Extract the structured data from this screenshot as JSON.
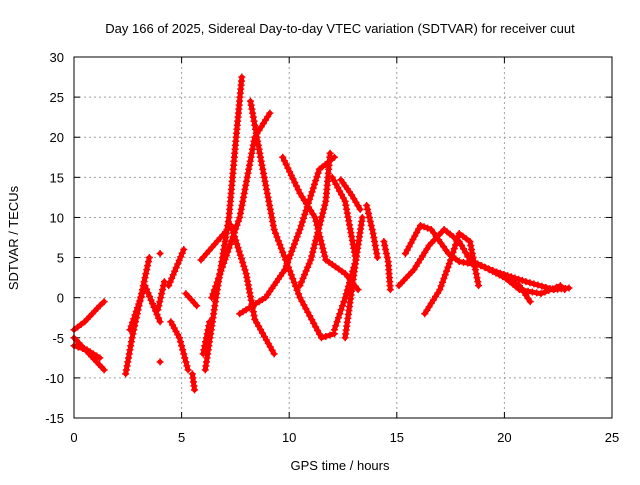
{
  "chart_data": {
    "type": "scatter",
    "title": "Day 166 of 2025, Sidereal Day-to-day VTEC variation (SDTVAR) for receiver cuut",
    "xlabel": "GPS time / hours",
    "ylabel": "SDTVAR / TECUs",
    "xlim": [
      0,
      25
    ],
    "ylim": [
      -15,
      30
    ],
    "xticks": [
      0,
      5,
      10,
      15,
      20,
      25
    ],
    "yticks": [
      -15,
      -10,
      -5,
      0,
      5,
      10,
      15,
      20,
      25,
      30
    ],
    "grid": true,
    "marker": "plus",
    "color": "#ff0000",
    "tracks": [
      [
        [
          6.1,
          -9
        ],
        [
          6.6,
          0
        ],
        [
          7.2,
          10
        ],
        [
          7.5,
          19
        ],
        [
          7.8,
          27.5
        ]
      ],
      [
        [
          6.4,
          0
        ],
        [
          7.7,
          10
        ],
        [
          8.4,
          20
        ],
        [
          9.1,
          23
        ]
      ],
      [
        [
          8.2,
          24.5
        ],
        [
          8.7,
          17
        ],
        [
          9.3,
          8.5
        ],
        [
          10.5,
          0
        ],
        [
          11.5,
          -5
        ],
        [
          12.1,
          -4.5
        ]
      ],
      [
        [
          5.9,
          4.7
        ],
        [
          7.3,
          9
        ],
        [
          8.0,
          3
        ],
        [
          8.4,
          -2.7
        ],
        [
          9.3,
          -7
        ]
      ],
      [
        [
          7.7,
          -2
        ],
        [
          8.9,
          0
        ],
        [
          9.8,
          3.5
        ],
        [
          10.5,
          8.5
        ],
        [
          11.4,
          16
        ],
        [
          12.1,
          17.5
        ]
      ],
      [
        [
          9.7,
          17.5
        ],
        [
          10.5,
          13
        ],
        [
          11.2,
          10
        ],
        [
          11.7,
          4.7
        ],
        [
          12.6,
          3
        ],
        [
          13.2,
          1
        ]
      ],
      [
        [
          10.5,
          1.5
        ],
        [
          11,
          4.7
        ],
        [
          11.7,
          12
        ],
        [
          11.9,
          18
        ]
      ],
      [
        [
          12,
          15
        ],
        [
          12.6,
          12
        ],
        [
          13.1,
          4.7
        ],
        [
          12.6,
          -5
        ]
      ],
      [
        [
          12.1,
          -4
        ],
        [
          12.6,
          0
        ],
        [
          13.1,
          4.7
        ],
        [
          13.4,
          10
        ]
      ],
      [
        [
          12.4,
          14.7
        ],
        [
          12.9,
          12.8
        ],
        [
          13.3,
          11
        ]
      ],
      [
        [
          13.6,
          11.5
        ],
        [
          13.9,
          8
        ],
        [
          14.1,
          5
        ]
      ],
      [
        [
          14.4,
          7
        ],
        [
          14.6,
          4.5
        ],
        [
          14.7,
          1
        ]
      ],
      [
        [
          15.4,
          5.5
        ],
        [
          16.1,
          9
        ],
        [
          16.6,
          8.5
        ],
        [
          17.4,
          5.5
        ],
        [
          17.9,
          4.5
        ],
        [
          18.9,
          4
        ],
        [
          19.8,
          3
        ],
        [
          20.7,
          1
        ],
        [
          21.7,
          0.5
        ],
        [
          22.6,
          1.5
        ],
        [
          22.8,
          1
        ]
      ],
      [
        [
          15.1,
          1.5
        ],
        [
          15.8,
          3.5
        ],
        [
          16.5,
          6.5
        ],
        [
          17.2,
          8.5
        ],
        [
          17.9,
          7
        ],
        [
          18.4,
          4.7
        ],
        [
          19.3,
          3.5
        ],
        [
          20.7,
          1.5
        ],
        [
          21.2,
          -0.5
        ]
      ],
      [
        [
          16.3,
          -2
        ],
        [
          17,
          1
        ],
        [
          17.5,
          4.7
        ],
        [
          17.9,
          8
        ],
        [
          18.4,
          7
        ],
        [
          18.8,
          1.5
        ]
      ],
      [
        [
          19.3,
          3.5
        ],
        [
          21,
          2
        ],
        [
          22.3,
          1
        ],
        [
          23,
          1.2
        ]
      ],
      [
        [
          0,
          -4
        ],
        [
          0.5,
          -3
        ],
        [
          1.2,
          -1
        ],
        [
          1.4,
          -0.5
        ]
      ],
      [
        [
          0,
          -5
        ],
        [
          0.7,
          -7
        ],
        [
          1.4,
          -9
        ]
      ],
      [
        [
          0,
          -6
        ],
        [
          0.6,
          -6.5
        ],
        [
          1.2,
          -7.5
        ]
      ],
      [
        [
          2.4,
          -9.5
        ],
        [
          2.7,
          -5
        ],
        [
          3.1,
          0
        ],
        [
          3.5,
          5
        ]
      ],
      [
        [
          2.6,
          -4
        ],
        [
          3.3,
          1.5
        ],
        [
          4,
          -3
        ]
      ],
      [
        [
          4.4,
          1.5
        ],
        [
          5.1,
          6
        ]
      ],
      [
        [
          4.5,
          -3
        ],
        [
          4.9,
          -5
        ],
        [
          5.3,
          -9
        ]
      ],
      [
        [
          5.5,
          -9.5
        ],
        [
          5.6,
          -11.5
        ]
      ],
      [
        [
          5.2,
          0.5
        ],
        [
          5.7,
          -1
        ]
      ],
      [
        [
          6,
          -7
        ],
        [
          6.3,
          -3
        ]
      ],
      [
        [
          4,
          5.5
        ],
        [
          4,
          5.5
        ]
      ],
      [
        [
          4,
          -8
        ],
        [
          4,
          -8
        ]
      ],
      [
        [
          3.9,
          -1.5
        ],
        [
          4.2,
          2
        ]
      ]
    ]
  }
}
